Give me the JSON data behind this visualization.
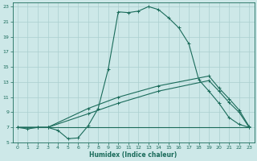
{
  "xlabel": "Humidex (Indice chaleur)",
  "xlim": [
    -0.5,
    23.5
  ],
  "ylim": [
    5,
    23.5
  ],
  "xticks": [
    0,
    1,
    2,
    3,
    4,
    5,
    6,
    7,
    8,
    9,
    10,
    11,
    12,
    13,
    14,
    15,
    16,
    17,
    18,
    19,
    20,
    21,
    22,
    23
  ],
  "yticks": [
    5,
    7,
    9,
    11,
    13,
    15,
    17,
    19,
    21,
    23
  ],
  "bg_color": "#cde8e8",
  "grid_color": "#aacfcf",
  "line_color": "#1a6b5a",
  "curve1_x": [
    0,
    1,
    2,
    3,
    4,
    5,
    6,
    7,
    8,
    9,
    10,
    11,
    12,
    13,
    14,
    15,
    16,
    17,
    18,
    19,
    20,
    21,
    22,
    23
  ],
  "curve1_y": [
    7.0,
    6.8,
    7.0,
    7.0,
    6.6,
    5.5,
    5.6,
    7.2,
    9.5,
    14.7,
    22.3,
    22.2,
    22.4,
    23.0,
    22.6,
    21.5,
    20.2,
    18.1,
    13.3,
    11.8,
    10.2,
    8.3,
    7.4,
    7.0
  ],
  "curve2_x": [
    0,
    2,
    3,
    4,
    5,
    6,
    7,
    22,
    23
  ],
  "curve2_y": [
    7.0,
    7.0,
    7.0,
    7.0,
    7.0,
    7.0,
    7.0,
    7.0,
    7.0
  ],
  "curve3_x": [
    0,
    2,
    3,
    7,
    10,
    14,
    19,
    20,
    21,
    22,
    23
  ],
  "curve3_y": [
    7.0,
    7.0,
    7.0,
    8.8,
    10.2,
    11.8,
    13.2,
    11.8,
    10.3,
    9.0,
    7.0
  ],
  "curve4_x": [
    0,
    2,
    3,
    7,
    10,
    14,
    19,
    20,
    21,
    22,
    23
  ],
  "curve4_y": [
    7.0,
    7.0,
    7.0,
    9.5,
    11.0,
    12.5,
    13.8,
    12.2,
    10.8,
    9.3,
    7.1
  ]
}
